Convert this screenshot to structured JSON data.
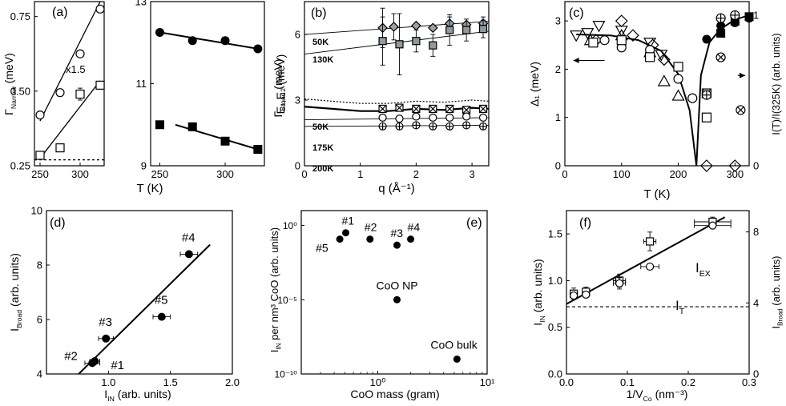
{
  "figure": {
    "panels": [
      "(a)",
      "(b)",
      "(c)",
      "(d)",
      "(e)",
      "(f)"
    ]
  },
  "chart_data": [
    {
      "id": "a_left",
      "type": "scatter",
      "panel_label": "(a)",
      "xlabel": "T (K)",
      "ylabel": "Γ_Narrow (meV)",
      "ylabel_main": "Γ",
      "ylabel_sub": "Narrow",
      "ylabel_tail": " (meV)",
      "xlim": [
        243,
        330
      ],
      "ylim": [
        0.25,
        0.8
      ],
      "xticks": [
        250,
        300
      ],
      "yticks": [
        0.25,
        0.5,
        0.75
      ],
      "ytick_labels": [
        "0.25",
        "0.50",
        "0.75"
      ],
      "annotation": "x1.5",
      "series": [
        {
          "name": "circles",
          "marker": "open-circle",
          "x": [
            250,
            275,
            300,
            325
          ],
          "y": [
            0.42,
            0.495,
            0.625,
            0.775
          ],
          "fit": [
            [
              250,
              0.4
            ],
            [
              325,
              0.8
            ]
          ]
        },
        {
          "name": "squares",
          "marker": "open-square",
          "x": [
            250,
            275,
            300,
            325
          ],
          "y": [
            0.285,
            0.31,
            0.49,
            0.52
          ],
          "err": [
            0,
            0,
            0.02,
            0
          ],
          "fit": [
            [
              250,
              0.275
            ],
            [
              325,
              0.535
            ]
          ]
        }
      ],
      "reference_line": {
        "y": 0.27,
        "style": "dotted"
      }
    },
    {
      "id": "a_right",
      "type": "scatter",
      "xlabel": "T (K)",
      "ylabel": "Γ_Broad (meV)",
      "ylabel_main": "Γ",
      "ylabel_sub": "Broad",
      "ylabel_tail": " (meV)",
      "xlim": [
        243,
        330
      ],
      "ylim": [
        9,
        13
      ],
      "xticks": [
        250,
        300
      ],
      "yticks": [
        9,
        11,
        13
      ],
      "series": [
        {
          "name": "circles",
          "marker": "filled-circle",
          "x": [
            250,
            275,
            300,
            325
          ],
          "y": [
            12.25,
            12.05,
            12.05,
            11.85
          ],
          "fit": [
            [
              250,
              12.25
            ],
            [
              325,
              11.85
            ]
          ]
        },
        {
          "name": "squares",
          "marker": "filled-square",
          "x": [
            250,
            275,
            300,
            325
          ],
          "y": [
            10.0,
            9.95,
            9.6,
            9.4
          ],
          "fit": [
            [
              262,
              10.0
            ],
            [
              325,
              9.4
            ]
          ]
        }
      ]
    },
    {
      "id": "b",
      "type": "scatter",
      "panel_label": "(b)",
      "xlabel": "q (Å⁻¹)",
      "ylabel": "E₁,E₂ (meV)",
      "xlim": [
        0,
        3.3
      ],
      "ylim": [
        0,
        7.5
      ],
      "xticks": [
        0,
        1,
        2,
        3
      ],
      "yticks": [
        0,
        3,
        6
      ],
      "series": [
        {
          "name": "50K",
          "label": "50K",
          "marker": "diamond",
          "x": [
            1.4,
            1.6,
            2.0,
            2.3,
            2.6,
            2.9,
            3.2
          ],
          "y": [
            6.3,
            6.35,
            6.4,
            6.3,
            6.5,
            6.45,
            6.5
          ],
          "err": [
            0.9,
            0.6,
            0,
            0,
            0.3,
            0,
            0.3
          ]
        },
        {
          "name": "130K",
          "label": "130K",
          "marker": "grey-square",
          "x": [
            1.4,
            1.7,
            2.0,
            2.3,
            2.6,
            2.9,
            3.2
          ],
          "y": [
            5.7,
            5.55,
            5.7,
            5.5,
            6.2,
            6.2,
            6.25
          ],
          "err": [
            1.1,
            1.4,
            0.5,
            0.5,
            0.7,
            0.5,
            0.4
          ]
        },
        {
          "name": "50K-low",
          "label": "50K",
          "marker": "x-square",
          "x": [
            1.4,
            1.7,
            2.0,
            2.3,
            2.6,
            2.9,
            3.2
          ],
          "y": [
            2.6,
            2.65,
            2.6,
            2.6,
            2.6,
            2.55,
            2.6
          ]
        },
        {
          "name": "175K",
          "label": "175K",
          "marker": "open-circle",
          "x": [
            1.4,
            1.7,
            2.0,
            2.3,
            2.6,
            2.9,
            3.2
          ],
          "y": [
            2.2,
            2.15,
            2.25,
            2.2,
            2.2,
            2.25,
            2.2
          ]
        },
        {
          "name": "200K",
          "label": "200K",
          "marker": "crossed-circle",
          "x": [
            1.4,
            1.7,
            2.0,
            2.3,
            2.6,
            2.9,
            3.2
          ],
          "y": [
            1.8,
            1.8,
            1.85,
            1.8,
            1.8,
            1.85,
            1.8
          ]
        }
      ],
      "lines": [
        {
          "name": "50K-upper",
          "x": [
            0,
            3.3
          ],
          "y": [
            6.0,
            6.6
          ],
          "style": "thin"
        },
        {
          "name": "130K-upper",
          "x": [
            0,
            3.3
          ],
          "y": [
            5.1,
            6.15
          ],
          "style": "thin"
        },
        {
          "name": "50K-dotted",
          "x": [
            0,
            0.5,
            1.0,
            1.5,
            2.0,
            2.5,
            3.0,
            3.3
          ],
          "y": [
            3.05,
            2.95,
            2.85,
            2.85,
            2.95,
            2.9,
            3.0,
            2.95
          ],
          "style": "dotted"
        },
        {
          "name": "50K-bold",
          "x": [
            0,
            0.5,
            1.0,
            1.5,
            2.0,
            2.5,
            3.0,
            3.3
          ],
          "y": [
            2.7,
            2.6,
            2.5,
            2.5,
            2.6,
            2.55,
            2.65,
            2.6
          ],
          "style": "bold"
        },
        {
          "name": "175K",
          "x": [
            0,
            3.3
          ],
          "y": [
            2.1,
            2.2
          ],
          "style": "thin"
        },
        {
          "name": "200K",
          "x": [
            0,
            3.3
          ],
          "y": [
            1.8,
            1.85
          ],
          "style": "thin"
        }
      ]
    },
    {
      "id": "c",
      "type": "scatter",
      "panel_label": "(c)",
      "xlabel": "T (K)",
      "ylabel": "Δ₁ (meV)",
      "ylabel_right": "I(T)/I(325K) (arb. units)",
      "xlim": [
        0,
        325
      ],
      "ylim": [
        0,
        3.4
      ],
      "ylim_right": [
        0,
        1.09
      ],
      "xticks": [
        0,
        100,
        200,
        300
      ],
      "yticks": [
        0,
        1,
        2,
        3
      ],
      "yticks_right": [
        0,
        1
      ],
      "series": [
        {
          "name": "down-triangles",
          "marker": "open-down-triangle",
          "x": [
            20,
            40,
            60,
            100,
            150,
            170
          ],
          "y": [
            2.7,
            2.75,
            2.9,
            2.8,
            2.55,
            2.3
          ]
        },
        {
          "name": "diamonds",
          "marker": "open-diamond",
          "x": [
            55,
            100,
            120,
            155,
            175,
            250,
            300
          ],
          "y": [
            2.6,
            3.0,
            2.7,
            2.5,
            2.2,
            0.0,
            0.0
          ]
        },
        {
          "name": "triangles",
          "marker": "open-triangle",
          "x": [
            45,
            100,
            150,
            175,
            200
          ],
          "y": [
            2.6,
            2.7,
            2.35,
            1.75,
            1.45
          ]
        },
        {
          "name": "circles",
          "marker": "open-circle",
          "x": [
            70,
            100,
            150,
            200,
            225
          ],
          "y": [
            2.6,
            2.45,
            2.4,
            1.8,
            1.4
          ]
        },
        {
          "name": "squares",
          "marker": "open-square",
          "x": [
            50,
            100,
            150,
            200,
            250
          ],
          "y": [
            2.55,
            2.6,
            2.25,
            2.05,
            1.0
          ]
        },
        {
          "name": "x-squares",
          "marker": "x-square",
          "x": [
            250
          ],
          "y": [
            1.5
          ]
        },
        {
          "name": "filled-circles",
          "marker": "filled-circle",
          "axis": "right",
          "x": [
            250,
            275,
            300,
            325
          ],
          "y": [
            0.84,
            0.93,
            0.95,
            0.98
          ]
        },
        {
          "name": "filled-squares",
          "marker": "filled-square",
          "axis": "right",
          "x": [
            275,
            300,
            325
          ],
          "y": [
            0.88,
            0.96,
            0.99
          ]
        },
        {
          "name": "crossed-circles",
          "marker": "crossed-circle",
          "axis": "right",
          "x": [
            250,
            275,
            300
          ],
          "y": [
            0.47,
            0.98,
            1.0
          ]
        },
        {
          "name": "crossed-circle-x",
          "marker": "crossed-x-circle",
          "axis": "right",
          "x": [
            275,
            310
          ],
          "y": [
            0.72,
            0.37
          ]
        }
      ],
      "lines": [
        {
          "name": "delta-fit",
          "x": [
            20,
            80,
            130,
            170,
            200,
            220,
            232
          ],
          "y": [
            2.72,
            2.7,
            2.6,
            2.38,
            1.9,
            1.15,
            0.0
          ]
        },
        {
          "name": "intensity-fit",
          "axis": "right",
          "x": [
            232,
            240,
            255,
            275,
            300,
            325
          ],
          "y": [
            0.0,
            0.6,
            0.82,
            0.91,
            0.97,
            1.0
          ]
        }
      ],
      "arrows": [
        {
          "direction": "left",
          "x": [
            70,
            15
          ],
          "y": 2.18
        },
        {
          "direction": "right",
          "x": [
            305,
            318
          ],
          "y": 1.87
        }
      ]
    },
    {
      "id": "d",
      "type": "scatter",
      "panel_label": "(d)",
      "xlabel": "I_IN (arb. units)",
      "ylabel": "I_Broad (arb. units)",
      "xlabel_main": "I",
      "xlabel_sub": "IN",
      "xlabel_tail": " (arb. units)",
      "ylabel_main": "I",
      "ylabel_sub": "Broad",
      "ylabel_tail": " (arb. units)",
      "xlim": [
        0.5,
        2.0
      ],
      "ylim": [
        4,
        10
      ],
      "xticks": [
        1.0,
        1.5,
        2.0
      ],
      "xtick_labels": [
        "1.0",
        "1.5",
        "2.0"
      ],
      "yticks": [
        4,
        6,
        8,
        10
      ],
      "points": [
        {
          "label": "#1",
          "x": 0.89,
          "y": 4.47,
          "xerr": 0.04
        },
        {
          "label": "#2",
          "x": 0.87,
          "y": 4.4,
          "xerr": 0.06
        },
        {
          "label": "#3",
          "x": 0.98,
          "y": 5.3,
          "xerr": 0.06
        },
        {
          "label": "#4",
          "x": 1.65,
          "y": 8.4,
          "xerr": 0.07
        },
        {
          "label": "#5",
          "x": 1.43,
          "y": 6.1,
          "xerr": 0.07
        }
      ],
      "fit": {
        "x": [
          0.76,
          1.82
        ],
        "y": [
          4.0,
          8.75
        ]
      }
    },
    {
      "id": "e",
      "type": "scatter",
      "panel_label": "(e)",
      "xlabel": "CoO mass (gram)",
      "ylabel": "I_IN per nm³ CoO (arb. units)",
      "ylabel_main": "I",
      "ylabel_sub": "IN",
      "ylabel_tail": " per nm³ CoO (arb. units)",
      "x_scale": "log",
      "y_scale": "log",
      "xlim": [
        0.2,
        10
      ],
      "ylim": [
        1e-10,
        10
      ],
      "xticks": [
        1,
        10
      ],
      "xtick_labels": [
        "10⁰",
        "10¹"
      ],
      "yticks": [
        1,
        1e-05,
        1e-10
      ],
      "ytick_labels": [
        "10⁰",
        "10⁻⁵",
        "10⁻¹⁰"
      ],
      "points": [
        {
          "label": "#5",
          "x": 0.45,
          "y": 0.12
        },
        {
          "label": "#1",
          "x": 0.51,
          "y": 0.32
        },
        {
          "label": "#2",
          "x": 0.85,
          "y": 0.12
        },
        {
          "label": "#3",
          "x": 1.5,
          "y": 0.047
        },
        {
          "label": "#4",
          "x": 2.0,
          "y": 0.12
        },
        {
          "label": "CoO NP",
          "x": 1.5,
          "y": 1e-05
        },
        {
          "label": "CoO bulk",
          "x": 5.3,
          "y": 1e-09
        }
      ]
    },
    {
      "id": "f",
      "type": "scatter",
      "panel_label": "(f)",
      "xlabel": "1/V_Co (nm⁻³)",
      "ylabel": "I_IN (arb. units)",
      "ylabel_right": "I_Broad (arb. units)",
      "xlabel_main": "1/V",
      "xlabel_sub": "Co",
      "xlabel_tail": " (nm⁻³)",
      "ylabel_main": "I",
      "ylabel_sub": "IN",
      "ylabel_tail": " (arb. units)",
      "ylabel_right_main": "I",
      "ylabel_right_sub": "Broad",
      "ylabel_right_tail": " (arb. units)",
      "xlim": [
        0,
        0.3
      ],
      "ylim": [
        0,
        1.75
      ],
      "ylim_right": [
        0,
        9.2
      ],
      "xticks": [
        0.0,
        0.1,
        0.2,
        0.3
      ],
      "xtick_labels": [
        "0.0",
        "0.1",
        "0.2",
        "0.3"
      ],
      "yticks": [
        0.0,
        0.5,
        1.0,
        1.5
      ],
      "ytick_labels": [
        "0.0",
        "0.5",
        "1.0",
        "1.5"
      ],
      "yticks_right": [
        0,
        4,
        8
      ],
      "series": [
        {
          "name": "squares",
          "marker": "open-square",
          "x": [
            0.012,
            0.032,
            0.087,
            0.137,
            0.24
          ],
          "y": [
            0.86,
            0.88,
            1.0,
            1.42,
            1.63
          ],
          "xerr": [
            0.005,
            0.005,
            0.01,
            0.01,
            0.03
          ],
          "yerr": [
            0.06,
            0.05,
            0.07,
            0.1,
            0.05
          ]
        },
        {
          "name": "circles",
          "marker": "open-circle",
          "x": [
            0.012,
            0.032,
            0.087,
            0.137,
            0.24
          ],
          "y": [
            0.84,
            0.85,
            0.97,
            1.15,
            1.59
          ],
          "xerr": [
            0.005,
            0.005,
            0.01,
            0.015,
            0.03
          ],
          "yerr": [
            0,
            0,
            0.06,
            0,
            0
          ]
        }
      ],
      "fit": {
        "x": [
          0,
          0.26
        ],
        "y": [
          0.75,
          1.68
        ]
      },
      "reference_line": {
        "y": 0.72,
        "style": "dashed"
      },
      "labels": {
        "ex": "I_EX",
        "ex_main": "I",
        "ex_sub": "EX",
        "t": "I_T",
        "t_main": "I",
        "t_sub": "T"
      }
    }
  ]
}
